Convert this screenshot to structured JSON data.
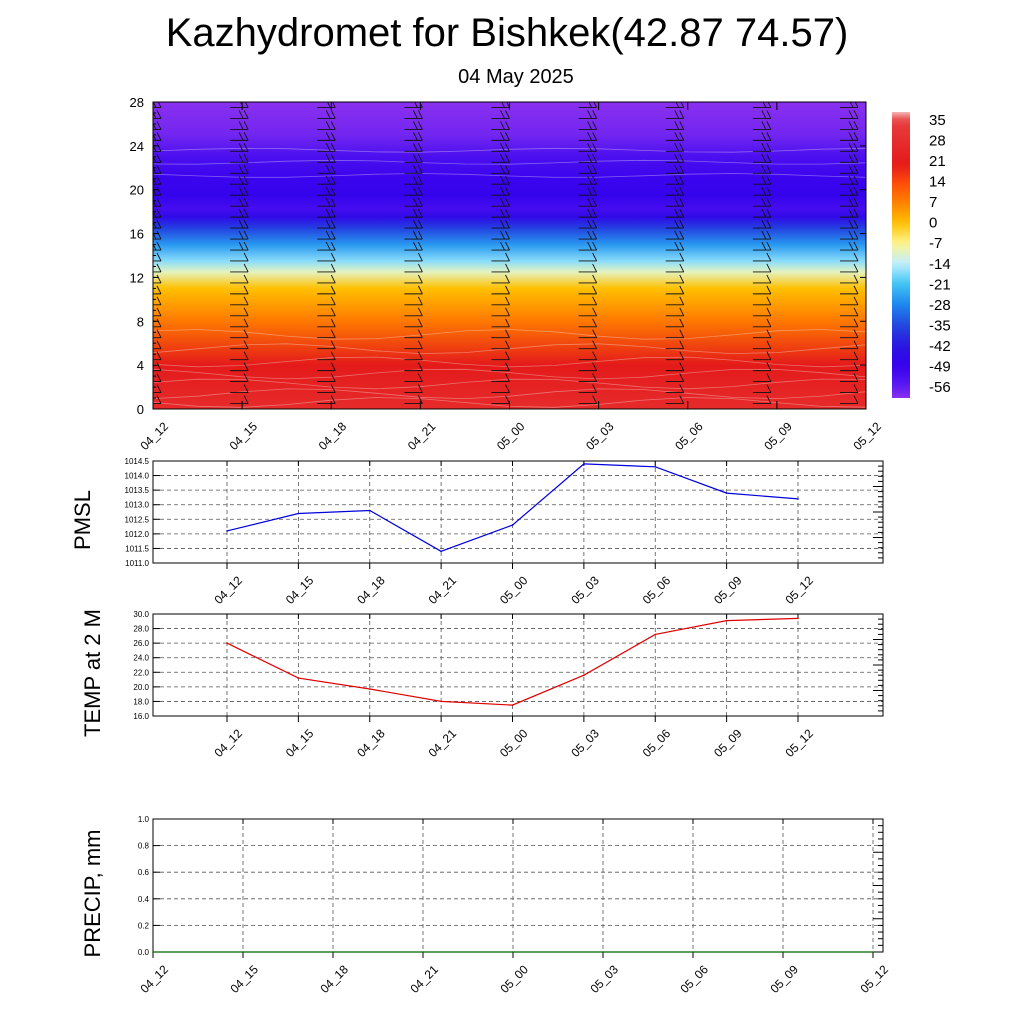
{
  "header": {
    "title": "Kazhydromet for Bishkek(42.87 74.57)",
    "date": "04 May 2025"
  },
  "chart_data": [
    {
      "type": "heatmap",
      "name": "cross-section",
      "x": [
        "04_12",
        "04_15",
        "04_18",
        "04_21",
        "05_00",
        "05_03",
        "05_06",
        "05_09",
        "05_12"
      ],
      "ylim": [
        0,
        28
      ],
      "yticks": [
        "0",
        "4",
        "8",
        "12",
        "16",
        "20",
        "24",
        "28"
      ],
      "colorbar": {
        "labels": [
          "35",
          "28",
          "21",
          "14",
          "7",
          "0",
          "-7",
          "-14",
          "-21",
          "-28",
          "-35",
          "-42",
          "-49",
          "-56"
        ],
        "stops": [
          {
            "v": 38,
            "color": "#f4b6b6"
          },
          {
            "v": 35,
            "color": "#e83e3e"
          },
          {
            "v": 20,
            "color": "#e41a1a"
          },
          {
            "v": 14,
            "color": "#ff4a0a"
          },
          {
            "v": 7,
            "color": "#ff8000"
          },
          {
            "v": 0,
            "color": "#ffc000"
          },
          {
            "v": -7,
            "color": "#fff690"
          },
          {
            "v": -14,
            "color": "#bfeeff"
          },
          {
            "v": -21,
            "color": "#40c4f4"
          },
          {
            "v": -28,
            "color": "#1f86ee"
          },
          {
            "v": -35,
            "color": "#2247e0"
          },
          {
            "v": -42,
            "color": "#2a17e0"
          },
          {
            "v": -49,
            "color": "#3600ee"
          },
          {
            "v": -56,
            "color": "#5a1bf0"
          },
          {
            "v": -60,
            "color": "#8a30f0"
          }
        ]
      },
      "profile": [
        {
          "h": 0,
          "t": 27
        },
        {
          "h": 4,
          "t": 20
        },
        {
          "h": 8,
          "t": 8
        },
        {
          "h": 11,
          "t": 0
        },
        {
          "h": 12.5,
          "t": -10
        },
        {
          "h": 13.5,
          "t": -17
        },
        {
          "h": 15,
          "t": -26
        },
        {
          "h": 16.5,
          "t": -36
        },
        {
          "h": 17.5,
          "t": -46
        },
        {
          "h": 18.3,
          "t": -52
        },
        {
          "h": 19.5,
          "t": -48
        },
        {
          "h": 21,
          "t": -50
        },
        {
          "h": 23,
          "t": -53
        },
        {
          "h": 25,
          "t": -58
        },
        {
          "h": 28,
          "t": -60
        }
      ]
    },
    {
      "type": "line",
      "name": "pmsl",
      "ylabel": "PMSL",
      "x": [
        "04_12",
        "04_15",
        "04_18",
        "04_21",
        "05_00",
        "05_03",
        "05_06",
        "05_09",
        "05_12"
      ],
      "values": [
        1012.1,
        1012.7,
        1012.8,
        1011.4,
        1012.3,
        1014.4,
        1014.3,
        1013.4,
        1013.2
      ],
      "ylim": [
        1011.0,
        1014.5
      ],
      "yticks": [
        "1011.0",
        "1011.5",
        "1012.0",
        "1012.5",
        "1013.0",
        "1013.5",
        "1014.0",
        "1014.5"
      ],
      "color": "#0000dd",
      "grid": true
    },
    {
      "type": "line",
      "name": "temp2m",
      "ylabel": "TEMP at 2 M",
      "x": [
        "04_12",
        "04_15",
        "04_18",
        "04_21",
        "05_00",
        "05_03",
        "05_06",
        "05_09",
        "05_12"
      ],
      "values": [
        26.0,
        21.2,
        19.7,
        18.0,
        17.5,
        21.6,
        27.2,
        29.1,
        29.4
      ],
      "ylim": [
        16.0,
        30.0
      ],
      "yticks": [
        "16.0",
        "18.0",
        "20.0",
        "22.0",
        "24.0",
        "26.0",
        "28.0",
        "30.0"
      ],
      "color": "#e00000",
      "grid": true
    },
    {
      "type": "line",
      "name": "precip",
      "ylabel": "PRECIP, mm",
      "x": [
        "04_12",
        "04_15",
        "04_18",
        "04_21",
        "05_00",
        "05_03",
        "05_06",
        "05_09",
        "05_12"
      ],
      "values": [
        0,
        0,
        0,
        0,
        0,
        0,
        0,
        0,
        0
      ],
      "ylim": [
        0.0,
        1.0
      ],
      "yticks": [
        "0.0",
        "0.2",
        "0.4",
        "0.6",
        "0.8",
        "1.0"
      ],
      "color": "#006400",
      "grid": true
    }
  ],
  "colors": {
    "axis": "#000000",
    "grid": "#555555",
    "barb": "#111111"
  }
}
